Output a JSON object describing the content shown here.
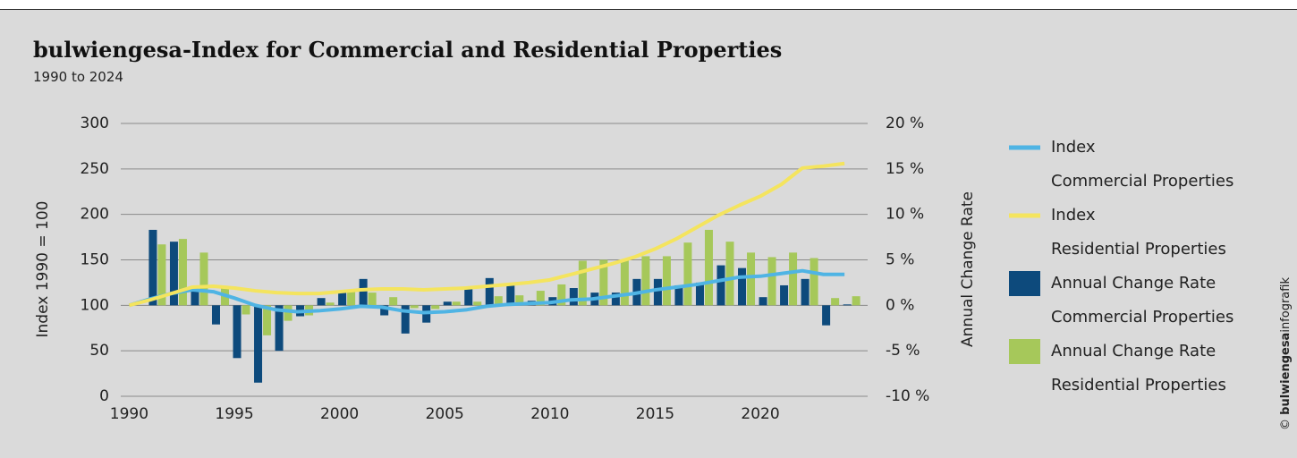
{
  "chart_data": {
    "type": "combo",
    "title": "bulwiengesa-Index for Commercial and Residential Properties",
    "subtitle": "1990 to 2024",
    "y_label": "Index 1990 = 100",
    "y2_label": "Annual Change Rate",
    "credit": [
      "©",
      "bulwiengesa",
      "infografik"
    ],
    "x": [
      1990,
      1991,
      1992,
      1993,
      1994,
      1995,
      1996,
      1997,
      1998,
      1999,
      2000,
      2001,
      2002,
      2003,
      2004,
      2005,
      2006,
      2007,
      2008,
      2009,
      2010,
      2011,
      2012,
      2013,
      2014,
      2015,
      2016,
      2017,
      2018,
      2019,
      2020,
      2021,
      2022,
      2023,
      2024
    ],
    "xlim": [
      1989.6,
      2025.1
    ],
    "xticks": [
      1990,
      1995,
      2000,
      2005,
      2010,
      2015,
      2020
    ],
    "ylim": [
      0,
      300
    ],
    "yticks": [
      0,
      50,
      100,
      150,
      200,
      250,
      300
    ],
    "y2lim": [
      -10,
      20
    ],
    "y2ticks": [
      {
        "value": -10,
        "label": "-10 %"
      },
      {
        "value": -5,
        "label": "-5 %"
      },
      {
        "value": 0,
        "label": "0 %"
      },
      {
        "value": 5,
        "label": "5 %"
      },
      {
        "value": 10,
        "label": "10 %"
      },
      {
        "value": 15,
        "label": "15 %"
      },
      {
        "value": 20,
        "label": "20 %"
      }
    ],
    "grid": true,
    "legend": "right",
    "series": [
      {
        "name": "Index\nCommercial Properties",
        "type": "line",
        "color": "#4fb4e4",
        "values": [
          100,
          107,
          113,
          117,
          115,
          108,
          100,
          95,
          93,
          94,
          96,
          99,
          98,
          94,
          92,
          93,
          95,
          99,
          101,
          102,
          103,
          106,
          107,
          110,
          113,
          117,
          120,
          123,
          127,
          131,
          132,
          135,
          138,
          134,
          134
        ]
      },
      {
        "name": "Index\nResidential Properties",
        "type": "line",
        "color": "#f4e45e",
        "values": [
          100,
          106,
          113,
          120,
          121,
          119,
          116,
          114,
          113,
          113,
          115,
          117,
          118,
          118,
          117,
          118,
          119,
          121,
          123,
          125,
          128,
          134,
          140,
          146,
          153,
          162,
          173,
          186,
          199,
          210,
          220,
          233,
          251,
          253,
          256
        ]
      },
      {
        "name": "Annual Change Rate\nCommercial Properties",
        "type": "bar",
        "axis": "y2",
        "color": "#0d4a7c",
        "values": [
          null,
          8.3,
          7.0,
          1.7,
          -2.1,
          -5.8,
          -8.5,
          -5.0,
          -1.2,
          0.8,
          1.5,
          2.9,
          -1.1,
          -3.1,
          -1.9,
          0.4,
          1.8,
          3.0,
          2.2,
          0.5,
          0.9,
          1.9,
          1.4,
          1.4,
          2.9,
          2.9,
          2.2,
          2.5,
          4.4,
          4.1,
          0.9,
          2.2,
          2.9,
          -2.2,
          0.1
        ]
      },
      {
        "name": "Annual Change Rate\nResidential Properties",
        "type": "bar",
        "axis": "y2",
        "color": "#a6c85a",
        "values": [
          null,
          6.7,
          7.3,
          5.8,
          2.0,
          -1.0,
          -3.3,
          -1.7,
          -1.1,
          0.3,
          1.7,
          1.4,
          0.9,
          -0.3,
          -0.4,
          0.4,
          0.4,
          1.0,
          1.1,
          1.6,
          2.3,
          4.9,
          5.0,
          5.0,
          5.4,
          5.4,
          6.9,
          8.3,
          7.0,
          5.8,
          5.3,
          5.8,
          5.2,
          0.8,
          1.0
        ]
      }
    ]
  }
}
